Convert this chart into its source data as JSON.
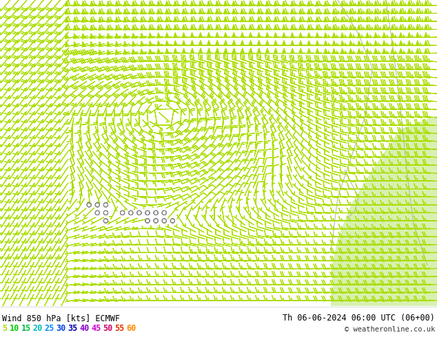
{
  "title_left": "Wind 850 hPa [kts] ECMWF",
  "title_right": "Th 06-06-2024 06:00 UTC (06+00)",
  "copyright": "© weatheronline.co.uk",
  "legend_values": [
    5,
    10,
    15,
    20,
    25,
    30,
    35,
    40,
    45,
    50,
    55,
    60
  ],
  "legend_colors": [
    "#aadd00",
    "#00cc00",
    "#00bb44",
    "#00bbbb",
    "#0088ff",
    "#0044dd",
    "#0000aa",
    "#8800cc",
    "#cc00cc",
    "#cc0066",
    "#dd3300",
    "#ff8800"
  ],
  "bg_color": "#ffffff",
  "land_color": "#e8ffe0",
  "sea_color": "#f0f0f0",
  "coast_color": "#aaaaaa",
  "figsize": [
    6.34,
    4.9
  ],
  "dpi": 100,
  "font_color_label": "#000000",
  "font_size_title": 8.5,
  "font_size_legend": 8.5,
  "font_size_copyright": 7.5
}
